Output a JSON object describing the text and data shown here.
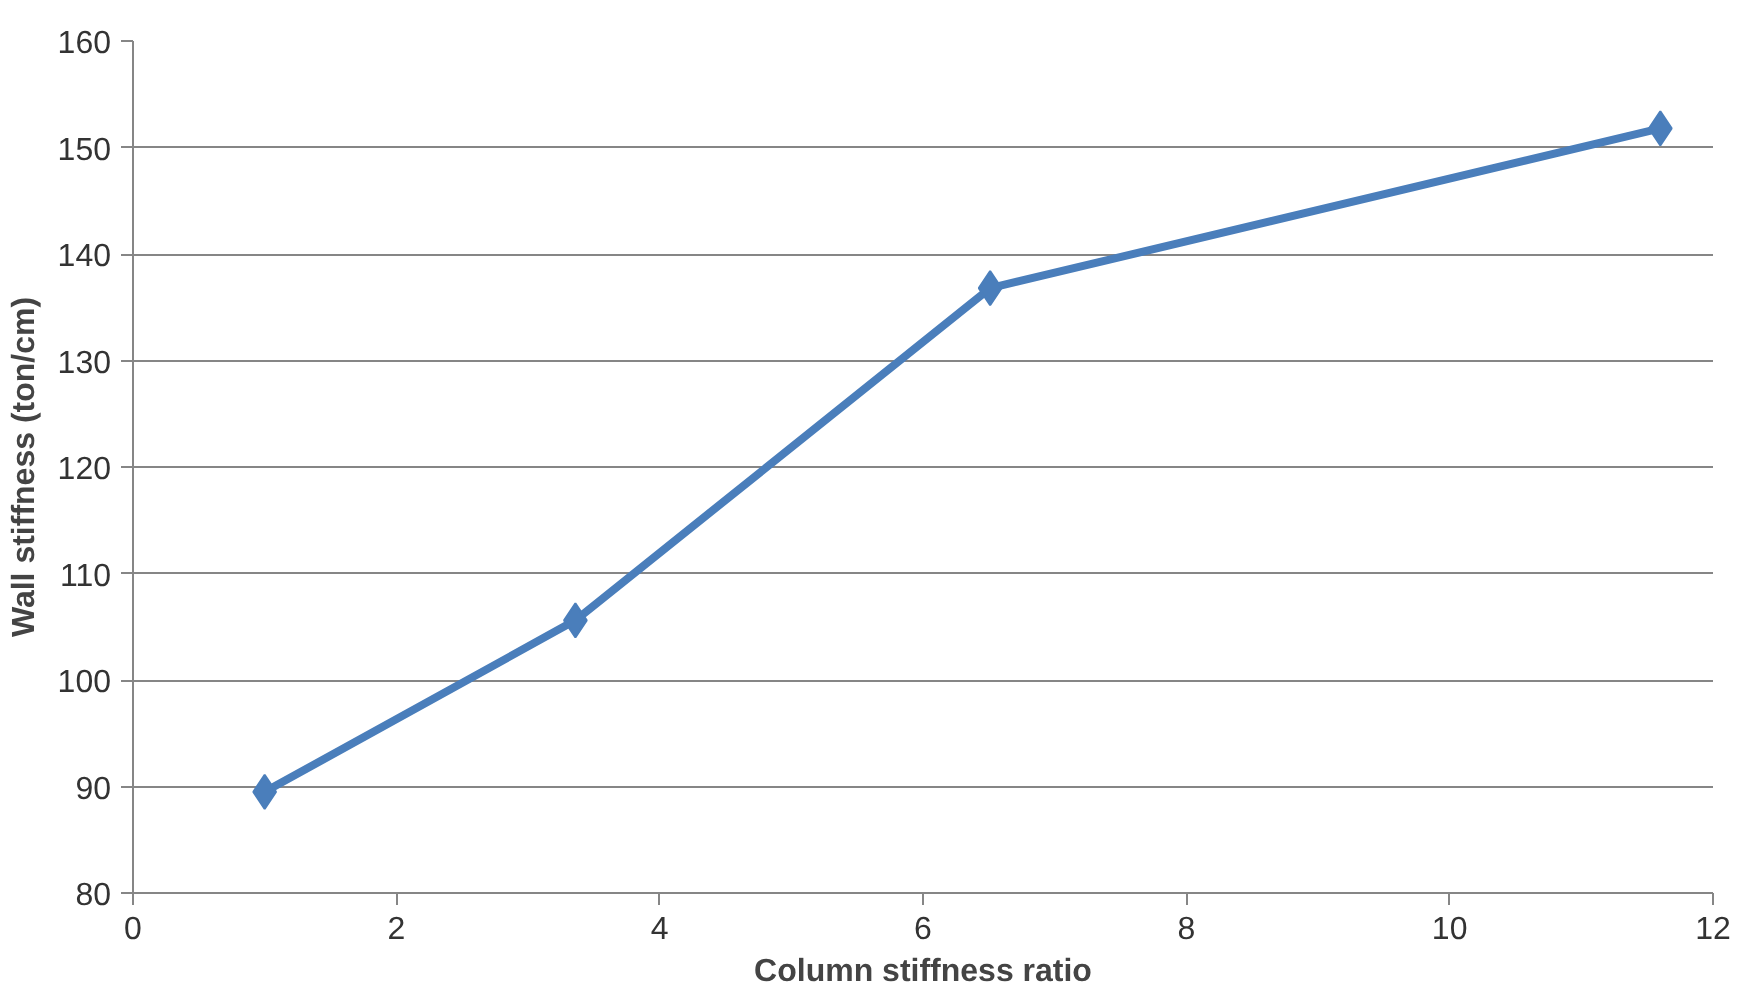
{
  "chart_data": {
    "type": "line",
    "xlabel": "Column stiffness ratio",
    "ylabel": "Wall stiffness (ton/cm)",
    "x": [
      1.0,
      3.36,
      6.51,
      11.6
    ],
    "series": [
      {
        "color": "#4a7ebb",
        "values": [
          89.5,
          105.6,
          136.8,
          151.8
        ]
      }
    ],
    "xlim": [
      0,
      12
    ],
    "xticks": [
      0,
      2,
      4,
      6,
      8,
      10,
      12
    ],
    "ylim": [
      80,
      160
    ],
    "yticks": [
      80,
      90,
      100,
      110,
      120,
      130,
      140,
      150,
      160
    ],
    "grid": "y",
    "marker": "diamond",
    "line_style": "solid"
  }
}
